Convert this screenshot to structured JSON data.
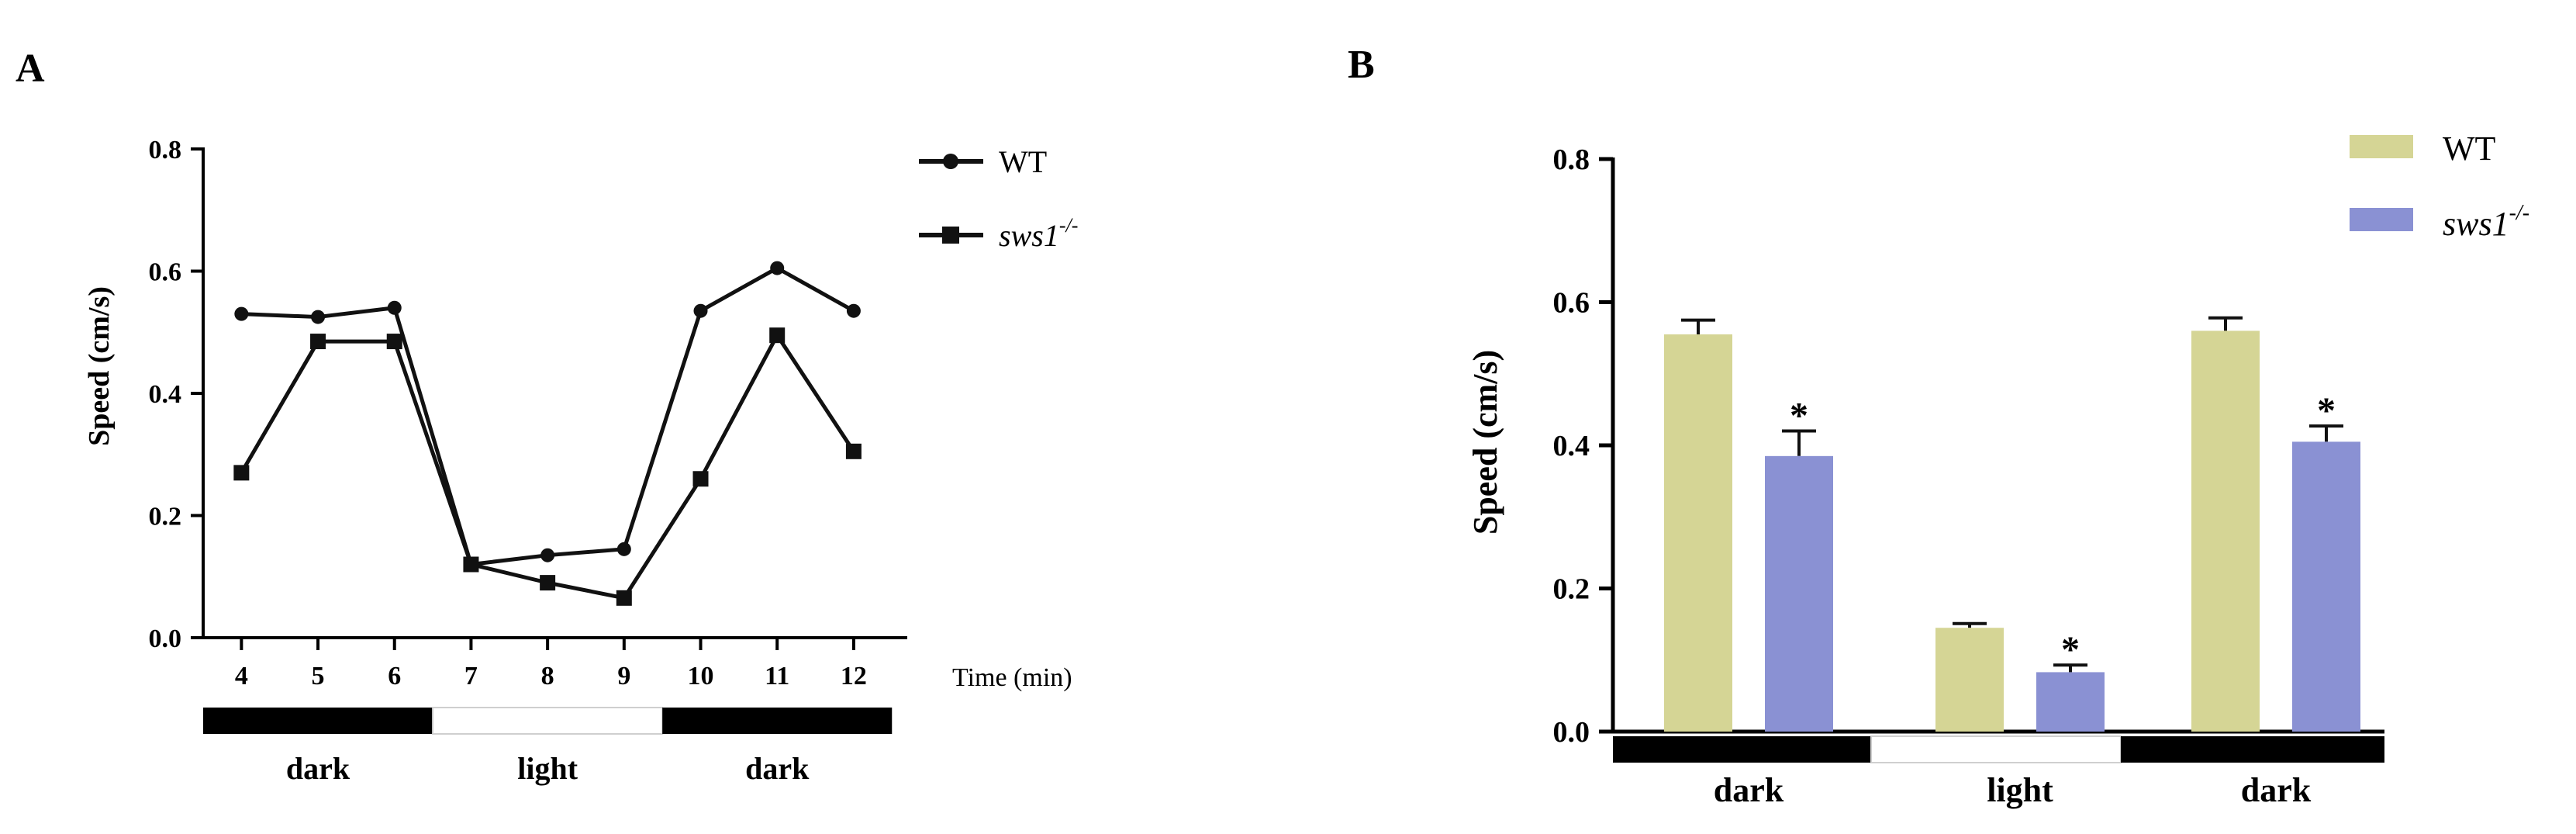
{
  "colors": {
    "axis": "#000000",
    "line": "#111111",
    "wt_bar": "#d5d595",
    "sws1_bar": "#8a91d3",
    "dark_bar": "#000000",
    "light_bar": "#ffffff",
    "light_bar_border": "#cfcfcf"
  },
  "panels": {
    "a_label": "A",
    "b_label": "B"
  },
  "chart_data": [
    {
      "type": "line",
      "panel": "A",
      "title": "",
      "xlabel": "Time (min)",
      "ylabel": "Speed (cm/s)",
      "x": [
        4,
        5,
        6,
        7,
        8,
        9,
        10,
        11,
        12
      ],
      "ylim": [
        0.0,
        0.8
      ],
      "yticks": [
        0.0,
        0.2,
        0.4,
        0.6,
        0.8
      ],
      "ytick_labels": [
        "0.0",
        "0.2",
        "0.4",
        "0.6",
        "0.8"
      ],
      "xtick_labels": [
        "4",
        "5",
        "6",
        "7",
        "8",
        "9",
        "10",
        "11",
        "12"
      ],
      "series": [
        {
          "name": "WT",
          "sup": "",
          "marker": "circle",
          "values": [
            0.53,
            0.525,
            0.54,
            0.12,
            0.135,
            0.145,
            0.535,
            0.605,
            0.535
          ]
        },
        {
          "name": "sws1",
          "sup": "-/-",
          "marker": "square",
          "values": [
            0.27,
            0.485,
            0.485,
            0.12,
            0.09,
            0.065,
            0.26,
            0.495,
            0.305
          ]
        }
      ],
      "legend_position": "top-right",
      "phases": [
        {
          "label": "dark",
          "type": "dark",
          "from": 3.5,
          "to": 6.5
        },
        {
          "label": "light",
          "type": "light",
          "from": 6.5,
          "to": 9.5
        },
        {
          "label": "dark",
          "type": "dark",
          "from": 9.5,
          "to": 12.5
        }
      ]
    },
    {
      "type": "bar",
      "panel": "B",
      "title": "",
      "xlabel": "",
      "ylabel": "Speed (cm/s)",
      "categories": [
        "dark",
        "light",
        "dark"
      ],
      "ylim": [
        0.0,
        0.8
      ],
      "yticks": [
        0.0,
        0.2,
        0.4,
        0.6,
        0.8
      ],
      "ytick_labels": [
        "0.0",
        "0.2",
        "0.4",
        "0.6",
        "0.8"
      ],
      "series": [
        {
          "name": "WT",
          "sup": "",
          "values": [
            0.555,
            0.145,
            0.56
          ],
          "errors": [
            0.02,
            0.006,
            0.018
          ],
          "significant": [
            false,
            false,
            false
          ]
        },
        {
          "name": "sws1",
          "sup": "-/-",
          "values": [
            0.385,
            0.083,
            0.405
          ],
          "errors": [
            0.035,
            0.01,
            0.022
          ],
          "significant": [
            true,
            true,
            true
          ]
        }
      ],
      "significance_marker": "*",
      "legend_position": "top-right",
      "phases": [
        {
          "label": "dark",
          "type": "dark"
        },
        {
          "label": "light",
          "type": "light"
        },
        {
          "label": "dark",
          "type": "dark"
        }
      ]
    }
  ]
}
